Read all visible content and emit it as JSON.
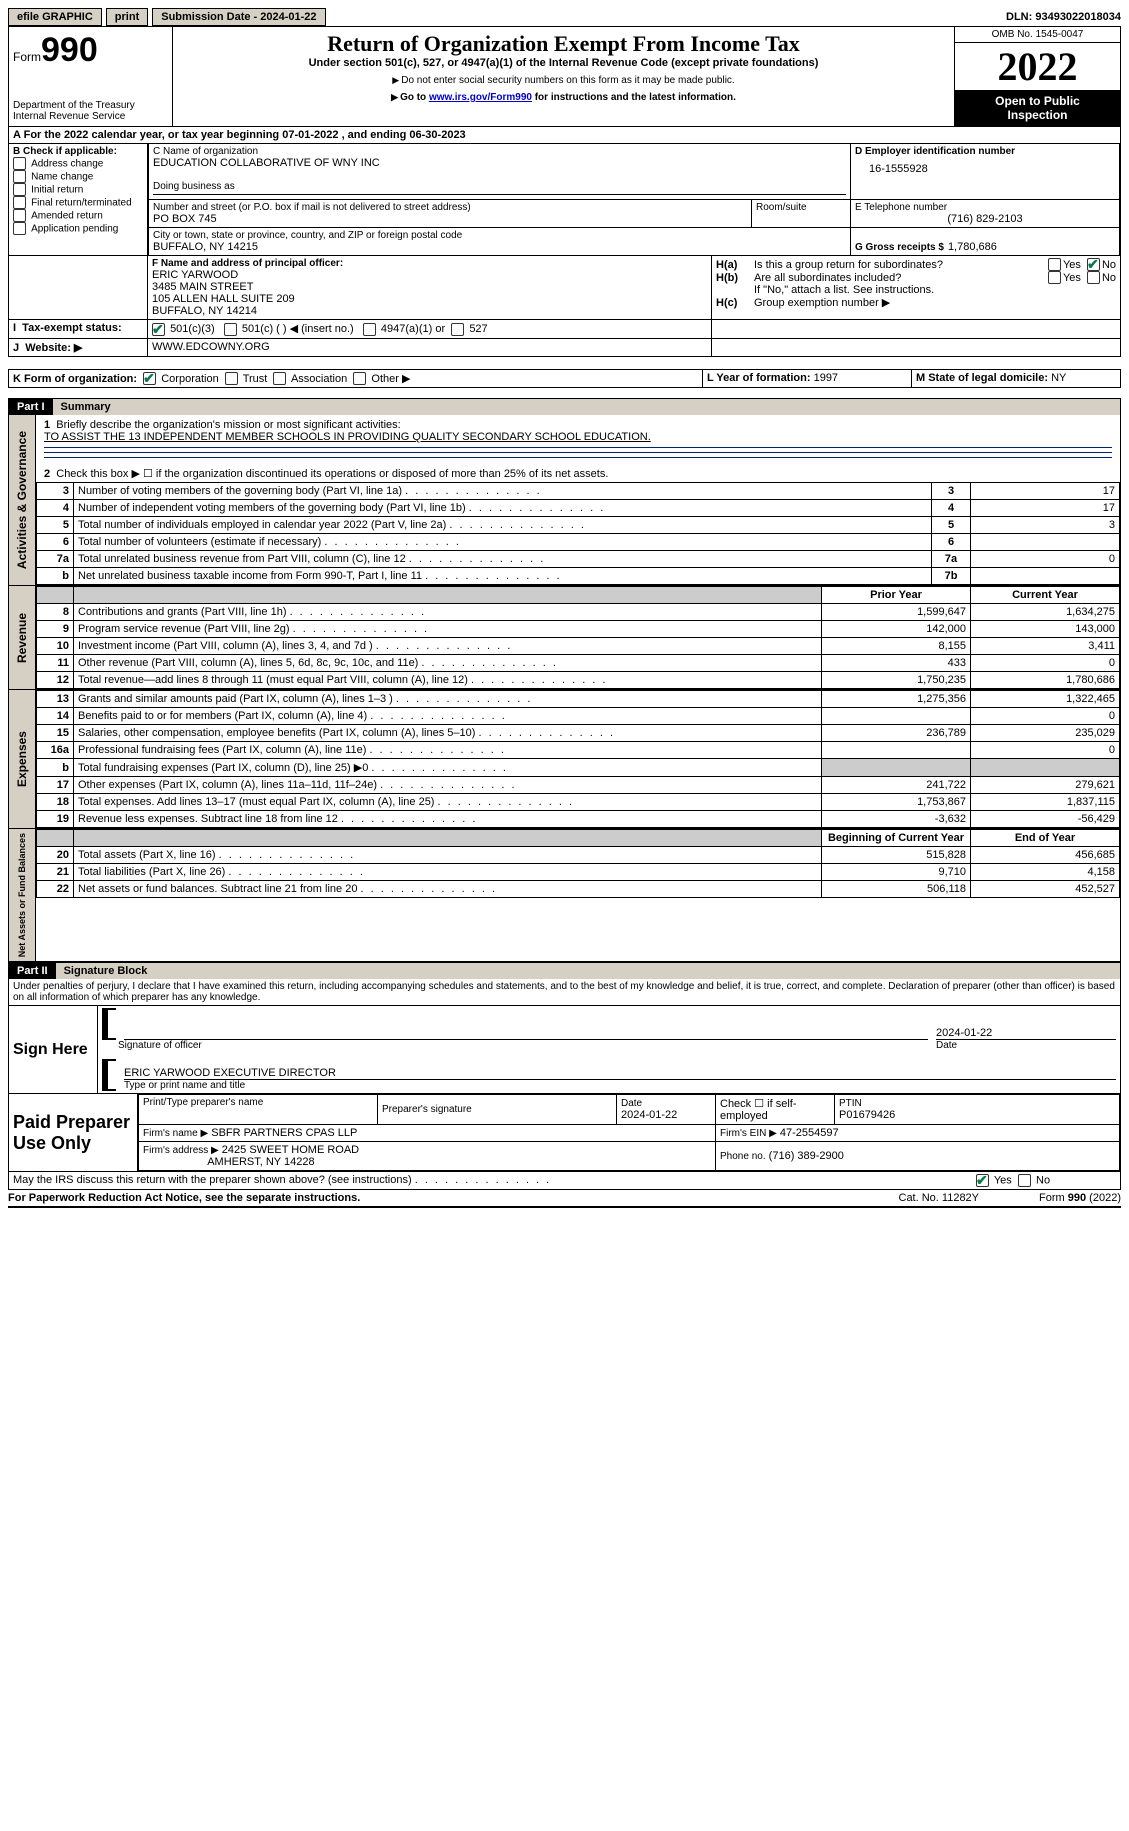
{
  "topbar": {
    "efile": "efile GRAPHIC",
    "print": "print",
    "sub_label": "Submission Date - 2024-01-22",
    "dln": "DLN: 93493022018034"
  },
  "header": {
    "form_word": "Form",
    "form_num": "990",
    "dept": "Department of the Treasury",
    "irs": "Internal Revenue Service",
    "title": "Return of Organization Exempt From Income Tax",
    "subtitle": "Under section 501(c), 527, or 4947(a)(1) of the Internal Revenue Code (except private foundations)",
    "note1": "Do not enter social security numbers on this form as it may be made public.",
    "note2_pre": "Go to ",
    "note2_link": "www.irs.gov/Form990",
    "note2_post": " for instructions and the latest information.",
    "omb": "OMB No. 1545-0047",
    "year": "2022",
    "inspect1": "Open to Public",
    "inspect2": "Inspection"
  },
  "period": {
    "label": "For the 2022 calendar year, or tax year beginning ",
    "begin": "07-01-2022",
    "mid": " , and ending ",
    "end": "06-30-2023"
  },
  "boxA": "A",
  "boxB": {
    "label": "B Check if applicable:",
    "opts": [
      "Address change",
      "Name change",
      "Initial return",
      "Final return/terminated",
      "Amended return",
      "Application pending"
    ]
  },
  "boxC": {
    "label": "C Name of organization",
    "name": "EDUCATION COLLABORATIVE OF WNY INC",
    "dba_label": "Doing business as",
    "street_label": "Number and street (or P.O. box if mail is not delivered to street address)",
    "room_label": "Room/suite",
    "street": "PO BOX 745",
    "city_label": "City or town, state or province, country, and ZIP or foreign postal code",
    "city": "BUFFALO, NY  14215"
  },
  "boxD": {
    "label": "D Employer identification number",
    "val": "16-1555928"
  },
  "boxE": {
    "label": "E Telephone number",
    "val": "(716) 829-2103"
  },
  "boxG": {
    "label": "G Gross receipts $",
    "val": "1,780,686"
  },
  "boxF": {
    "label": "F Name and address of principal officer:",
    "l1": "ERIC YARWOOD",
    "l2": "3485 MAIN STREET",
    "l3": "105 ALLEN HALL SUITE 209",
    "l4": "BUFFALO, NY  14214"
  },
  "boxH": {
    "ha": "Is this a group return for subordinates?",
    "hb": "Are all subordinates included?",
    "hnote": "If \"No,\" attach a list. See instructions.",
    "hc": "Group exemption number ▶",
    "yes": "Yes",
    "no": "No",
    "ha_lbl": "H(a)",
    "hb_lbl": "H(b)",
    "hc_lbl": "H(c)"
  },
  "boxI": {
    "label": "Tax-exempt status:",
    "o1": "501(c)(3)",
    "o2": "501(c) (  ) ◀ (insert no.)",
    "o3": "4947(a)(1) or",
    "o4": "527"
  },
  "boxJ": {
    "label": "Website: ▶",
    "val": "WWW.EDCOWNY.ORG"
  },
  "boxK": {
    "label": "K Form of organization:",
    "o1": "Corporation",
    "o2": "Trust",
    "o3": "Association",
    "o4": "Other ▶"
  },
  "boxL": {
    "label": "L Year of formation:",
    "val": "1997"
  },
  "boxM": {
    "label": "M State of legal domicile:",
    "val": "NY"
  },
  "part1": {
    "num": "Part I",
    "title": "Summary",
    "line1_label": "Briefly describe the organization's mission or most significant activities:",
    "line1_val": "TO ASSIST THE 13 INDEPENDENT MEMBER SCHOOLS IN PROVIDING QUALITY SECONDARY SCHOOL EDUCATION.",
    "line2": "Check this box ▶ ☐ if the organization discontinued its operations or disposed of more than 25% of its net assets.",
    "prior_year": "Prior Year",
    "current_year": "Current Year",
    "beg_year": "Beginning of Current Year",
    "end_year": "End of Year"
  },
  "summary_top": [
    {
      "n": "3",
      "t": "Number of voting members of the governing body (Part VI, line 1a)",
      "c": "3",
      "v": "17"
    },
    {
      "n": "4",
      "t": "Number of independent voting members of the governing body (Part VI, line 1b)",
      "c": "4",
      "v": "17"
    },
    {
      "n": "5",
      "t": "Total number of individuals employed in calendar year 2022 (Part V, line 2a)",
      "c": "5",
      "v": "3"
    },
    {
      "n": "6",
      "t": "Total number of volunteers (estimate if necessary)",
      "c": "6",
      "v": ""
    },
    {
      "n": "7a",
      "t": "Total unrelated business revenue from Part VIII, column (C), line 12",
      "c": "7a",
      "v": "0"
    },
    {
      "n": "b",
      "t": "Net unrelated business taxable income from Form 990-T, Part I, line 11",
      "c": "7b",
      "v": ""
    }
  ],
  "revenue": [
    {
      "n": "8",
      "t": "Contributions and grants (Part VIII, line 1h)",
      "p": "1,599,647",
      "c": "1,634,275"
    },
    {
      "n": "9",
      "t": "Program service revenue (Part VIII, line 2g)",
      "p": "142,000",
      "c": "143,000"
    },
    {
      "n": "10",
      "t": "Investment income (Part VIII, column (A), lines 3, 4, and 7d )",
      "p": "8,155",
      "c": "3,411"
    },
    {
      "n": "11",
      "t": "Other revenue (Part VIII, column (A), lines 5, 6d, 8c, 9c, 10c, and 11e)",
      "p": "433",
      "c": "0"
    },
    {
      "n": "12",
      "t": "Total revenue—add lines 8 through 11 (must equal Part VIII, column (A), line 12)",
      "p": "1,750,235",
      "c": "1,780,686"
    }
  ],
  "expenses": [
    {
      "n": "13",
      "t": "Grants and similar amounts paid (Part IX, column (A), lines 1–3 )",
      "p": "1,275,356",
      "c": "1,322,465"
    },
    {
      "n": "14",
      "t": "Benefits paid to or for members (Part IX, column (A), line 4)",
      "p": "",
      "c": "0"
    },
    {
      "n": "15",
      "t": "Salaries, other compensation, employee benefits (Part IX, column (A), lines 5–10)",
      "p": "236,789",
      "c": "235,029"
    },
    {
      "n": "16a",
      "t": "Professional fundraising fees (Part IX, column (A), line 11e)",
      "p": "",
      "c": "0"
    },
    {
      "n": "b",
      "t": "Total fundraising expenses (Part IX, column (D), line 25) ▶0",
      "p": "GRAY",
      "c": "GRAY"
    },
    {
      "n": "17",
      "t": "Other expenses (Part IX, column (A), lines 11a–11d, 11f–24e)",
      "p": "241,722",
      "c": "279,621"
    },
    {
      "n": "18",
      "t": "Total expenses. Add lines 13–17 (must equal Part IX, column (A), line 25)",
      "p": "1,753,867",
      "c": "1,837,115"
    },
    {
      "n": "19",
      "t": "Revenue less expenses. Subtract line 18 from line 12",
      "p": "-3,632",
      "c": "-56,429"
    }
  ],
  "netassets": [
    {
      "n": "20",
      "t": "Total assets (Part X, line 16)",
      "p": "515,828",
      "c": "456,685"
    },
    {
      "n": "21",
      "t": "Total liabilities (Part X, line 26)",
      "p": "9,710",
      "c": "4,158"
    },
    {
      "n": "22",
      "t": "Net assets or fund balances. Subtract line 21 from line 20",
      "p": "506,118",
      "c": "452,527"
    }
  ],
  "sides": {
    "gov": "Activities & Governance",
    "rev": "Revenue",
    "exp": "Expenses",
    "net": "Net Assets or Fund Balances"
  },
  "part2": {
    "num": "Part II",
    "title": "Signature Block",
    "decl": "Under penalties of perjury, I declare that I have examined this return, including accompanying schedules and statements, and to the best of my knowledge and belief, it is true, correct, and complete. Declaration of preparer (other than officer) is based on all information of which preparer has any knowledge."
  },
  "sign": {
    "label": "Sign Here",
    "sig_officer": "Signature of officer",
    "date": "Date",
    "date_val": "2024-01-22",
    "name": "ERIC YARWOOD  EXECUTIVE DIRECTOR",
    "name_label": "Type or print name and title"
  },
  "paid": {
    "label": "Paid Preparer Use Only",
    "c1": "Print/Type preparer's name",
    "c2": "Preparer's signature",
    "c3": "Date",
    "c3v": "2024-01-22",
    "c4": "Check ☐ if self-employed",
    "c5": "PTIN",
    "c5v": "P01679426",
    "firm_label": "Firm's name    ▶",
    "firm": "SBFR PARTNERS CPAS LLP",
    "ein_label": "Firm's EIN ▶",
    "ein": "47-2554597",
    "addr_label": "Firm's address ▶",
    "addr1": "2425 SWEET HOME ROAD",
    "addr2": "AMHERST, NY  14228",
    "phone_label": "Phone no.",
    "phone": "(716) 389-2900"
  },
  "footer": {
    "discuss": "May the IRS discuss this return with the preparer shown above? (see instructions)",
    "yes": "Yes",
    "no": "No",
    "pra": "For Paperwork Reduction Act Notice, see the separate instructions.",
    "cat": "Cat. No. 11282Y",
    "form": "Form 990 (2022)"
  }
}
